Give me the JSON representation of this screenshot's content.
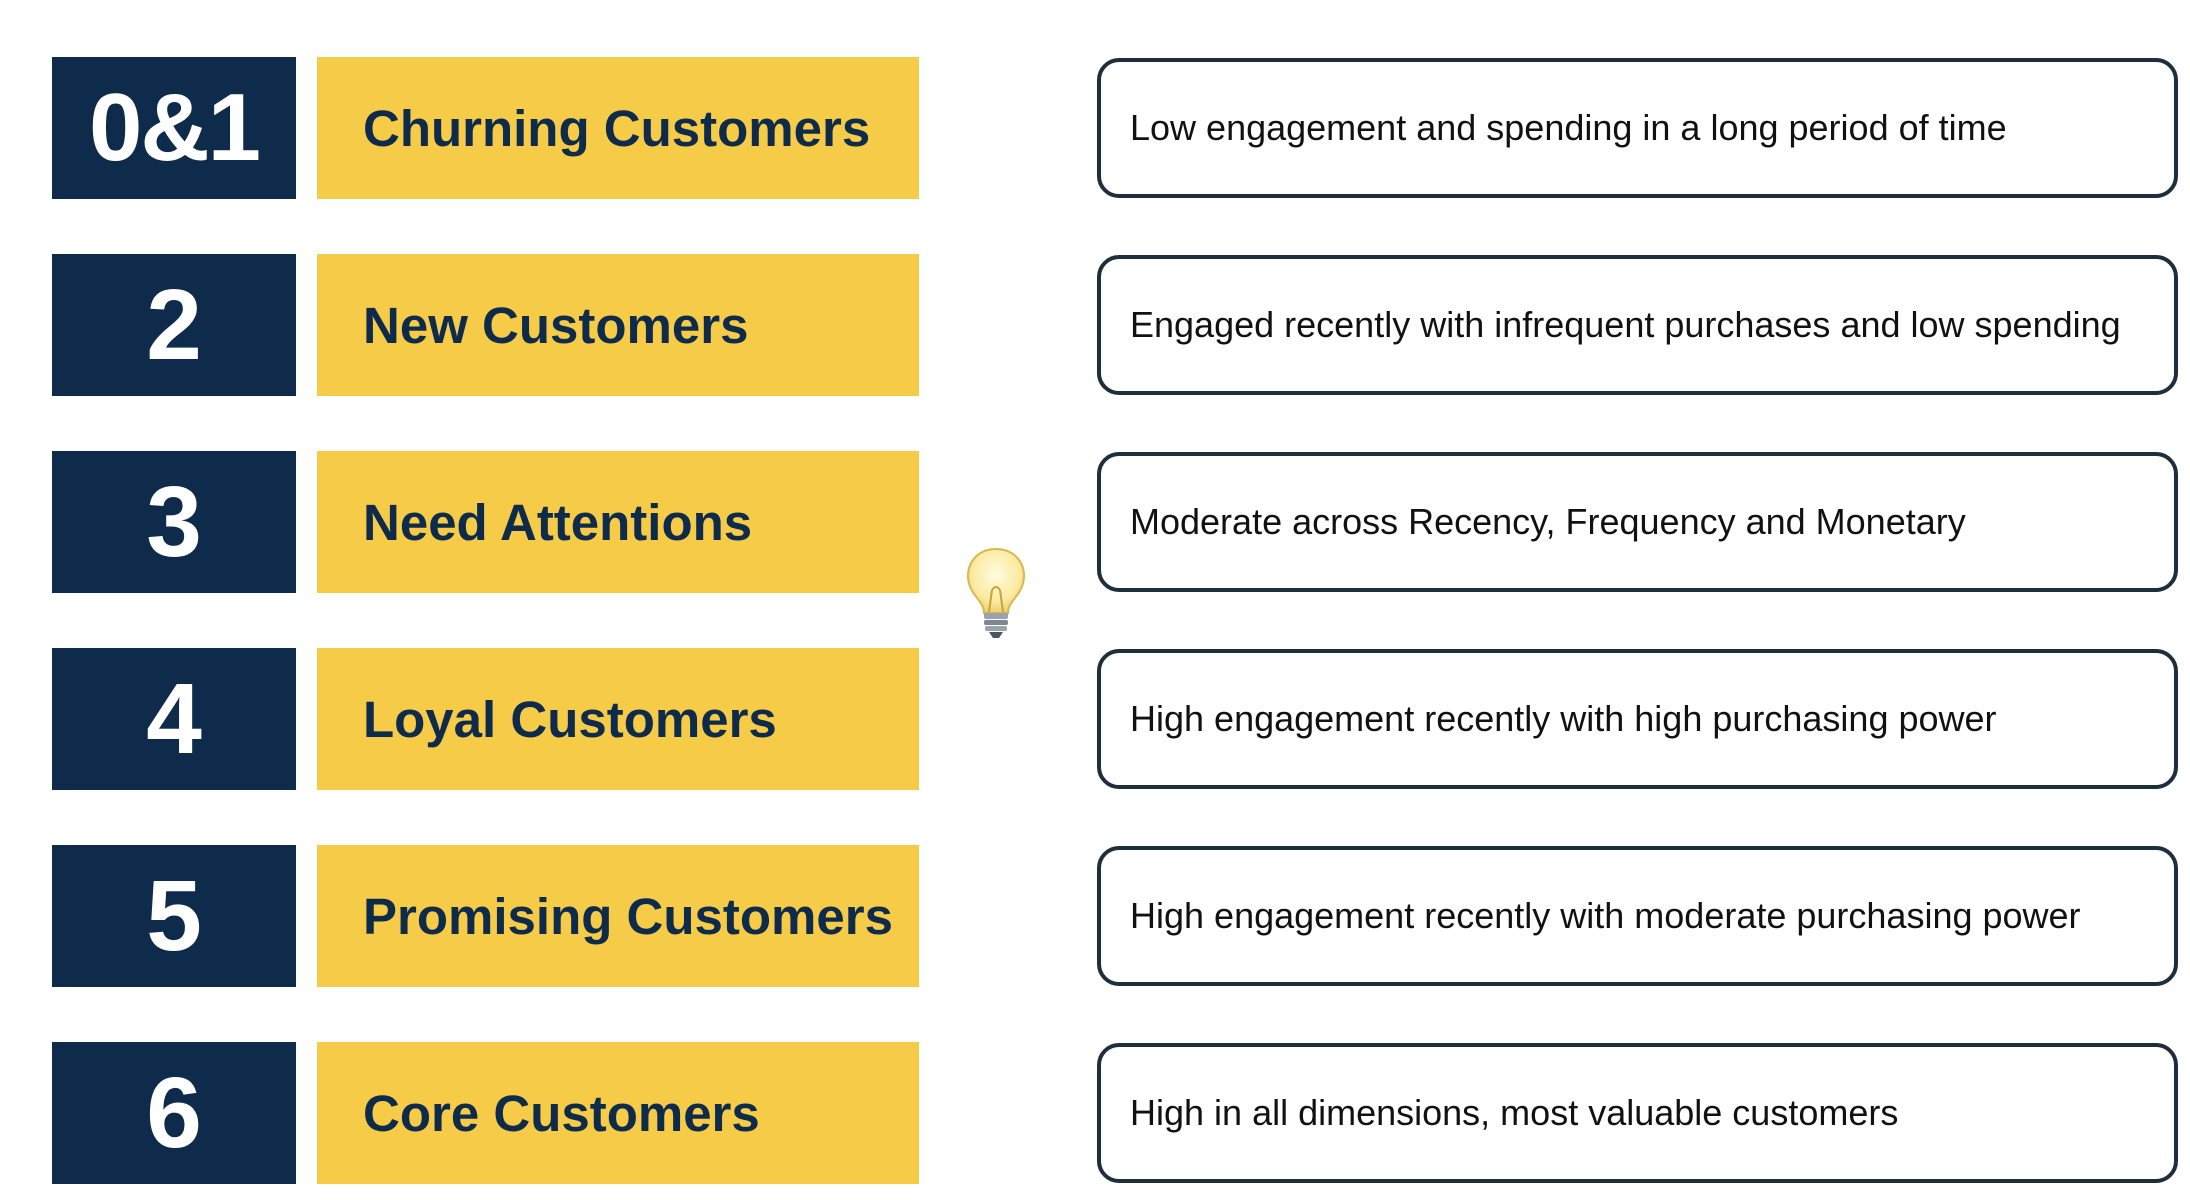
{
  "segments": [
    {
      "number": "0&1",
      "name": "Churning Customers",
      "description": "Low engagement and spending in a long period of time"
    },
    {
      "number": "2",
      "name": "New Customers",
      "description": "Engaged recently with infrequent purchases and low spending"
    },
    {
      "number": "3",
      "name": "Need Attentions",
      "description": "Moderate across Recency, Frequency and Monetary"
    },
    {
      "number": "4",
      "name": "Loyal Customers",
      "description": "High engagement recently with high purchasing power"
    },
    {
      "number": "5",
      "name": "Promising Customers",
      "description": "High engagement recently with moderate purchasing power"
    },
    {
      "number": "6",
      "name": "Core Customers",
      "description": "High in all dimensions, most valuable customers"
    }
  ],
  "icon": "lightbulb-icon",
  "colors": {
    "number_bg": "#0f2b4c",
    "name_bg": "#f5cb47",
    "name_text": "#0f2b4c",
    "desc_border": "#1f2e3d"
  }
}
